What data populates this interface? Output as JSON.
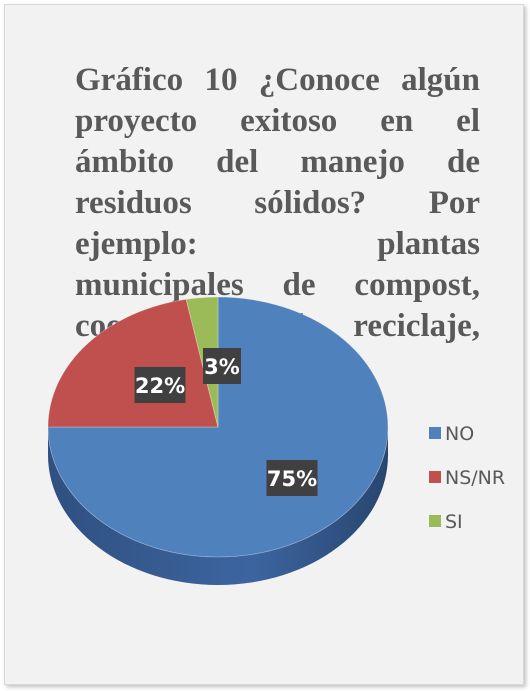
{
  "chart_data": {
    "type": "pie",
    "title": "Gráfico 10 ¿Conoce algún proyecto exitoso en el ámbito del manejo de residuos sólidos? Por ejemplo: plantas municipales de compost, cooperativas de reciclaje, etc.",
    "categories": [
      "NO",
      "NS/NR",
      "SI"
    ],
    "values": [
      75,
      22,
      3
    ],
    "data_labels": [
      "75%",
      "22%",
      "3%"
    ],
    "colors": [
      "#4f81bd",
      "#c0504d",
      "#9bbb59"
    ],
    "legend": "right",
    "style": "3d"
  }
}
